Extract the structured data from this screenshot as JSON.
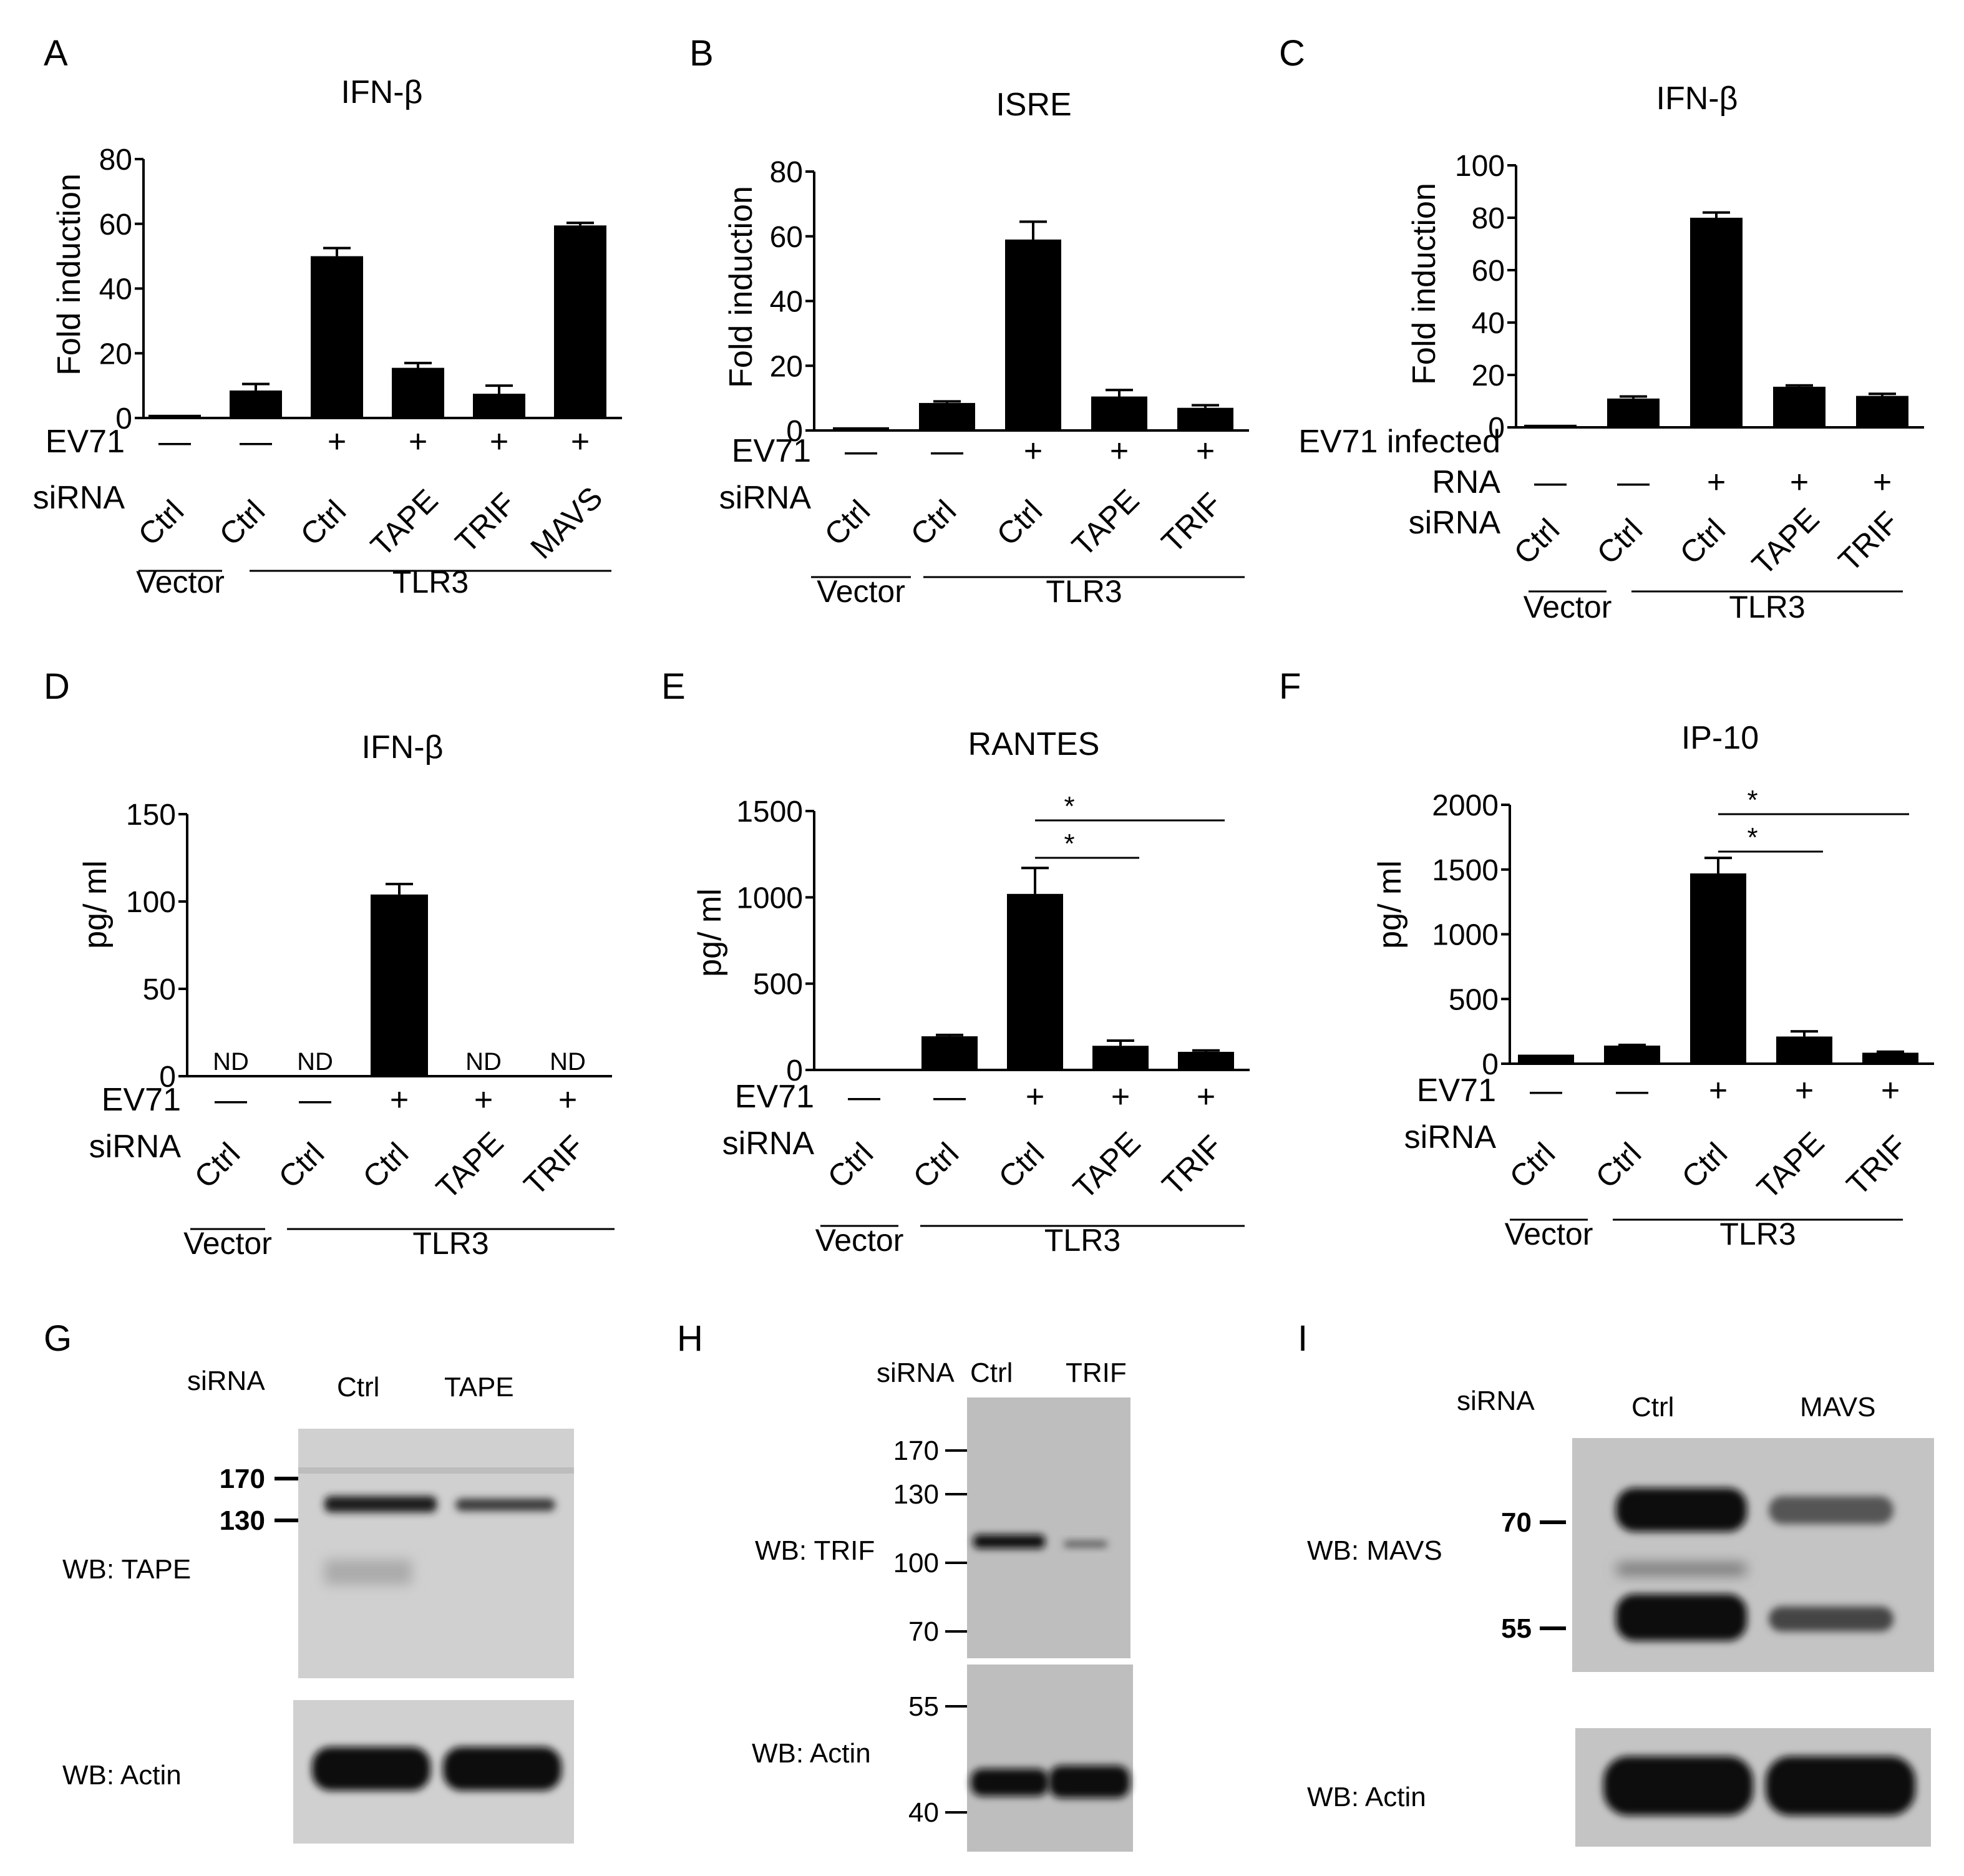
{
  "chart_data": [
    {
      "panel": "A",
      "type": "bar",
      "title": "IFN-β",
      "ylabel": "Fold induction",
      "ylim": [
        0,
        80
      ],
      "yticks": [
        "0",
        "20",
        "40",
        "60",
        "80"
      ],
      "row_labels": [
        "EV71",
        "siRNA"
      ],
      "ev71": [
        "—",
        "—",
        "+",
        "+",
        "+",
        "+"
      ],
      "sirna": [
        "Ctrl",
        "Ctrl",
        "Ctrl",
        "TAPE",
        "TRIF",
        "MAVS"
      ],
      "groups": [
        {
          "label": "Vector",
          "from": 0,
          "to": 0
        },
        {
          "label": "TLR3",
          "from": 1,
          "to": 5
        }
      ],
      "values": [
        1,
        8.5,
        50,
        15.5,
        7.5,
        59.5
      ],
      "errors": [
        0,
        2,
        2.5,
        1.5,
        2.5,
        0.8
      ]
    },
    {
      "panel": "B",
      "type": "bar",
      "title": "ISRE",
      "ylabel": "Fold induction",
      "ylim": [
        0,
        80
      ],
      "yticks": [
        "0",
        "20",
        "40",
        "60",
        "80"
      ],
      "row_labels": [
        "EV71",
        "siRNA"
      ],
      "ev71": [
        "—",
        "—",
        "+",
        "+",
        "+"
      ],
      "sirna": [
        "Ctrl",
        "Ctrl",
        "Ctrl",
        "TAPE",
        "TRIF"
      ],
      "groups": [
        {
          "label": "Vector",
          "from": 0,
          "to": 0
        },
        {
          "label": "TLR3",
          "from": 1,
          "to": 4
        }
      ],
      "values": [
        1,
        8.5,
        59,
        10.5,
        7
      ],
      "errors": [
        0,
        0.5,
        5.5,
        2,
        0.8
      ]
    },
    {
      "panel": "C",
      "type": "bar",
      "title": "IFN-β",
      "ylabel": "Fold induction",
      "ylim": [
        0,
        100
      ],
      "yticks": [
        "0",
        "20",
        "40",
        "60",
        "80",
        "100"
      ],
      "row_labels": [
        "EV71 infected",
        "RNA",
        "siRNA"
      ],
      "ev71": [
        "—",
        "—",
        "+",
        "+",
        "+"
      ],
      "sirna": [
        "Ctrl",
        "Ctrl",
        "Ctrl",
        "TAPE",
        "TRIF"
      ],
      "groups": [
        {
          "label": "Vector",
          "from": 0,
          "to": 0
        },
        {
          "label": "TLR3",
          "from": 1,
          "to": 4
        }
      ],
      "values": [
        1,
        11,
        80,
        15.5,
        12
      ],
      "errors": [
        0,
        0.8,
        2,
        0.5,
        0.8
      ]
    },
    {
      "panel": "D",
      "type": "bar",
      "title": "IFN-β",
      "ylabel": "pg/ ml",
      "ylim": [
        0,
        150
      ],
      "yticks": [
        "0",
        "50",
        "100",
        "150"
      ],
      "row_labels": [
        "EV71",
        "siRNA"
      ],
      "ev71": [
        "—",
        "—",
        "+",
        "+",
        "+"
      ],
      "sirna": [
        "Ctrl",
        "Ctrl",
        "Ctrl",
        "TAPE",
        "TRIF"
      ],
      "groups": [
        {
          "label": "Vector",
          "from": 0,
          "to": 0
        },
        {
          "label": "TLR3",
          "from": 1,
          "to": 4
        }
      ],
      "values": [
        0,
        0,
        104,
        0,
        0
      ],
      "errors": [
        0,
        0,
        6,
        0,
        0
      ],
      "annotations": [
        "ND",
        "ND",
        "",
        "ND",
        "ND"
      ]
    },
    {
      "panel": "E",
      "type": "bar",
      "title": "RANTES",
      "ylabel": "pg/ ml",
      "ylim": [
        0,
        1500
      ],
      "yticks": [
        "0",
        "500",
        "1000",
        "1500"
      ],
      "row_labels": [
        "EV71",
        "siRNA"
      ],
      "ev71": [
        "—",
        "—",
        "+",
        "+",
        "+"
      ],
      "sirna": [
        "Ctrl",
        "Ctrl",
        "Ctrl",
        "TAPE",
        "TRIF"
      ],
      "groups": [
        {
          "label": "Vector",
          "from": 0,
          "to": 0
        },
        {
          "label": "TLR3",
          "from": 1,
          "to": 4
        }
      ],
      "values": [
        5,
        195,
        1020,
        140,
        105
      ],
      "errors": [
        0,
        8,
        150,
        30,
        8
      ],
      "significance": [
        {
          "from": 2,
          "to": 3,
          "label": "*"
        },
        {
          "from": 2,
          "to": 4,
          "label": "*"
        }
      ]
    },
    {
      "panel": "F",
      "type": "bar",
      "title": "IP-10",
      "ylabel": "pg/ ml",
      "ylim": [
        0,
        2000
      ],
      "yticks": [
        "0",
        "500",
        "1000",
        "1500",
        "2000"
      ],
      "row_labels": [
        "EV71",
        "siRNA"
      ],
      "ev71": [
        "—",
        "—",
        "+",
        "+",
        "+"
      ],
      "sirna": [
        "Ctrl",
        "Ctrl",
        "Ctrl",
        "TAPE",
        "TRIF"
      ],
      "groups": [
        {
          "label": "Vector",
          "from": 0,
          "to": 0
        },
        {
          "label": "TLR3",
          "from": 1,
          "to": 4
        }
      ],
      "values": [
        70,
        140,
        1470,
        210,
        85
      ],
      "errors": [
        0,
        5,
        120,
        40,
        8
      ],
      "significance": [
        {
          "from": 2,
          "to": 3,
          "label": "*"
        },
        {
          "from": 2,
          "to": 4,
          "label": "*"
        }
      ]
    }
  ],
  "blots": [
    {
      "panel": "G",
      "sirna_label": "siRNA",
      "lanes": [
        "Ctrl",
        "TAPE"
      ],
      "target_label": "WB: TAPE",
      "loading_label": "WB: Actin",
      "markers": [
        "170",
        "130"
      ]
    },
    {
      "panel": "H",
      "sirna_label": "siRNA",
      "lanes": [
        "Ctrl",
        "TRIF"
      ],
      "target_label": "WB: TRIF",
      "loading_label": "WB: Actin",
      "markers": [
        "170",
        "130",
        "100",
        "70",
        "55",
        "40"
      ]
    },
    {
      "panel": "I",
      "sirna_label": "siRNA",
      "lanes": [
        "Ctrl",
        "MAVS"
      ],
      "target_label": "WB: MAVS",
      "loading_label": "WB: Actin",
      "markers": [
        "70",
        "55"
      ]
    }
  ]
}
